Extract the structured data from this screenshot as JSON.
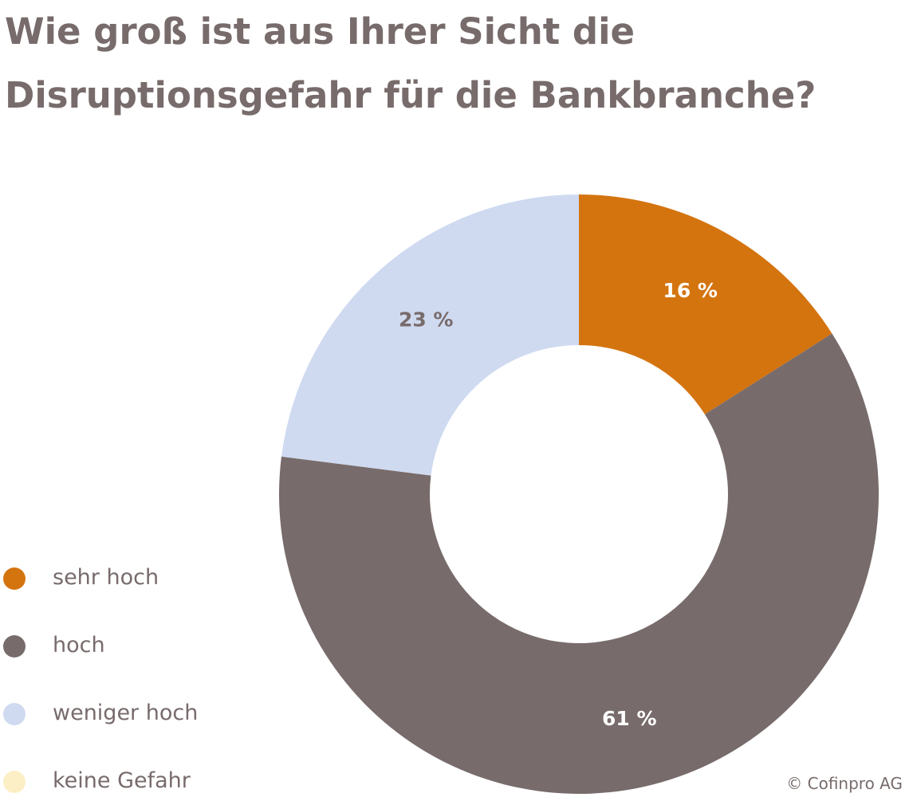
{
  "title_lines": [
    "Wie groß ist aus Ihrer Sicht die",
    "Disruptionsgefahr für die Bankbranche?"
  ],
  "copyright": "© Cofinpro AG",
  "chart_data": {
    "type": "pie",
    "donut": true,
    "title": "Wie groß ist aus Ihrer Sicht die Disruptionsgefahr für die Bankbranche?",
    "start_angle_deg": 0,
    "direction": "clockwise",
    "legend_position": "bottom-left",
    "slices": [
      {
        "label": "sehr hoch",
        "value": 16,
        "display": "16 %",
        "color": "#d4740f",
        "label_color": "#ffffff"
      },
      {
        "label": "hoch",
        "value": 61,
        "display": "61 %",
        "color": "#786b6b",
        "label_color": "#ffffff"
      },
      {
        "label": "weniger hoch",
        "value": 23,
        "display": "23 %",
        "color": "#cfdaf0",
        "label_color": "#786b6b"
      },
      {
        "label": "keine Gefahr",
        "value": 0,
        "display": "",
        "color": "#fcefc6",
        "label_color": "#786b6b"
      }
    ]
  }
}
